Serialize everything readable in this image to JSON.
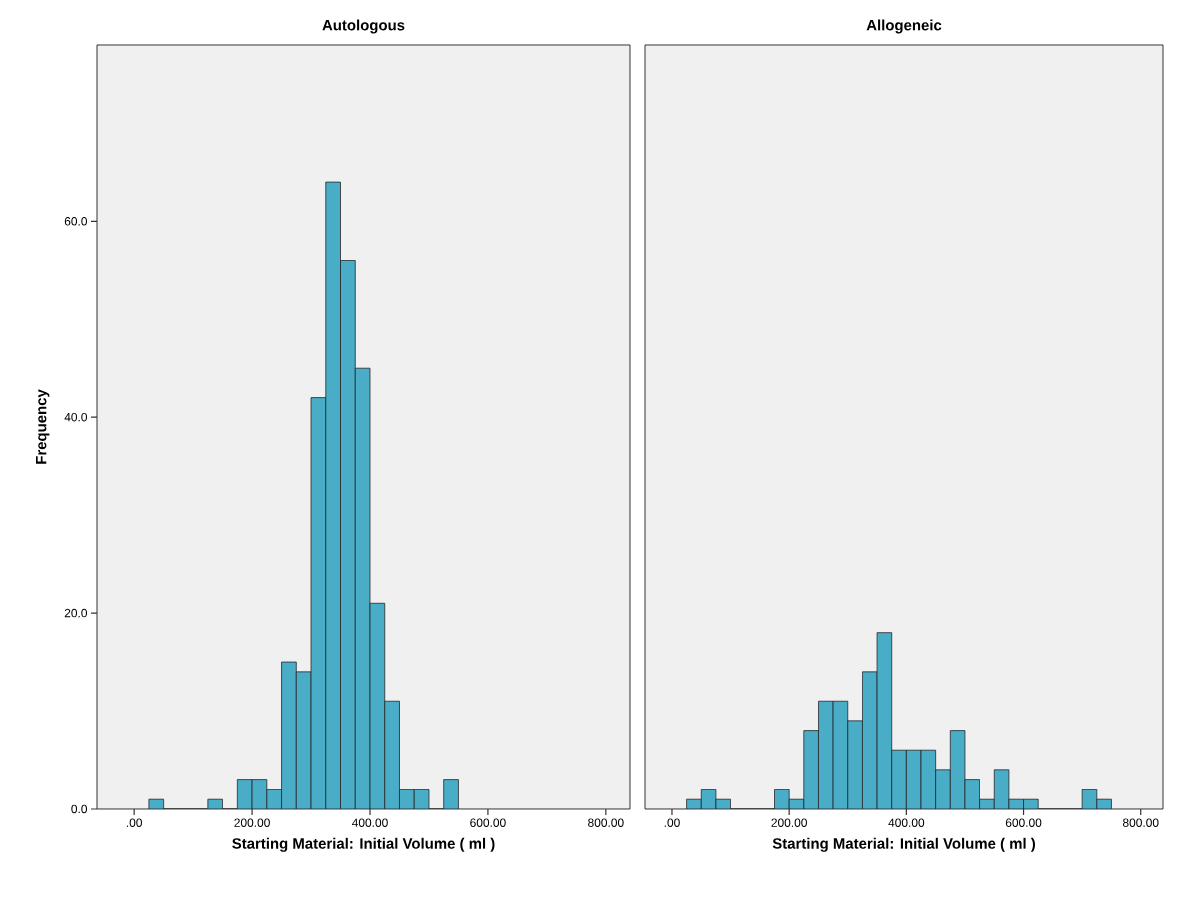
{
  "chart_data": [
    {
      "type": "histogram",
      "title": "Autologous",
      "xlabel": "Starting Material: Initial Volume ( ml )",
      "ylabel": "Frequency",
      "color": "#4aadc7",
      "bins": [
        25,
        50,
        75,
        100,
        125,
        150,
        175,
        200,
        225,
        250,
        275,
        300,
        325,
        350,
        375,
        400,
        425,
        450,
        475,
        500,
        525,
        550
      ],
      "values": [
        1,
        0,
        0,
        0,
        1,
        0,
        3,
        3,
        2,
        15,
        14,
        42,
        64,
        56,
        45,
        21,
        11,
        2,
        2,
        0,
        3
      ],
      "xlim": [
        -63,
        841
      ],
      "ylim": [
        0,
        78
      ],
      "xticks": [
        {
          "value": 0,
          "label": ".00"
        },
        {
          "value": 200,
          "label": "200.00"
        },
        {
          "value": 400,
          "label": "400.00"
        },
        {
          "value": 600,
          "label": "600.00"
        },
        {
          "value": 800,
          "label": "800.00"
        }
      ],
      "yticks": [
        {
          "value": 0,
          "label": "0.0"
        },
        {
          "value": 20,
          "label": "20.0"
        },
        {
          "value": 40,
          "label": "40.0"
        },
        {
          "value": 60,
          "label": "60.0"
        }
      ],
      "grid": false
    },
    {
      "type": "histogram",
      "title": "Allogeneic",
      "xlabel": "Starting Material: Initial Volume ( ml )",
      "color": "#4aadc7",
      "bins": [
        25,
        50,
        75,
        100,
        125,
        150,
        175,
        200,
        225,
        250,
        275,
        300,
        325,
        350,
        375,
        400,
        425,
        450,
        475,
        500,
        525,
        550,
        575,
        600,
        625,
        650,
        675,
        700,
        725,
        750
      ],
      "values": [
        1,
        2,
        1,
        0,
        0,
        0,
        2,
        1,
        8,
        11,
        11,
        9,
        14,
        18,
        6,
        6,
        6,
        4,
        8,
        3,
        1,
        4,
        1,
        1,
        0,
        0,
        0,
        2,
        1
      ],
      "xlim": [
        -46,
        838
      ],
      "ylim": [
        0,
        78
      ],
      "xticks": [
        {
          "value": 0,
          "label": ".00"
        },
        {
          "value": 200,
          "label": "200.00"
        },
        {
          "value": 400,
          "label": "400.00"
        },
        {
          "value": 600,
          "label": "600.00"
        },
        {
          "value": 800,
          "label": "800.00"
        }
      ],
      "tick_labels": "x",
      "grid": false
    }
  ]
}
